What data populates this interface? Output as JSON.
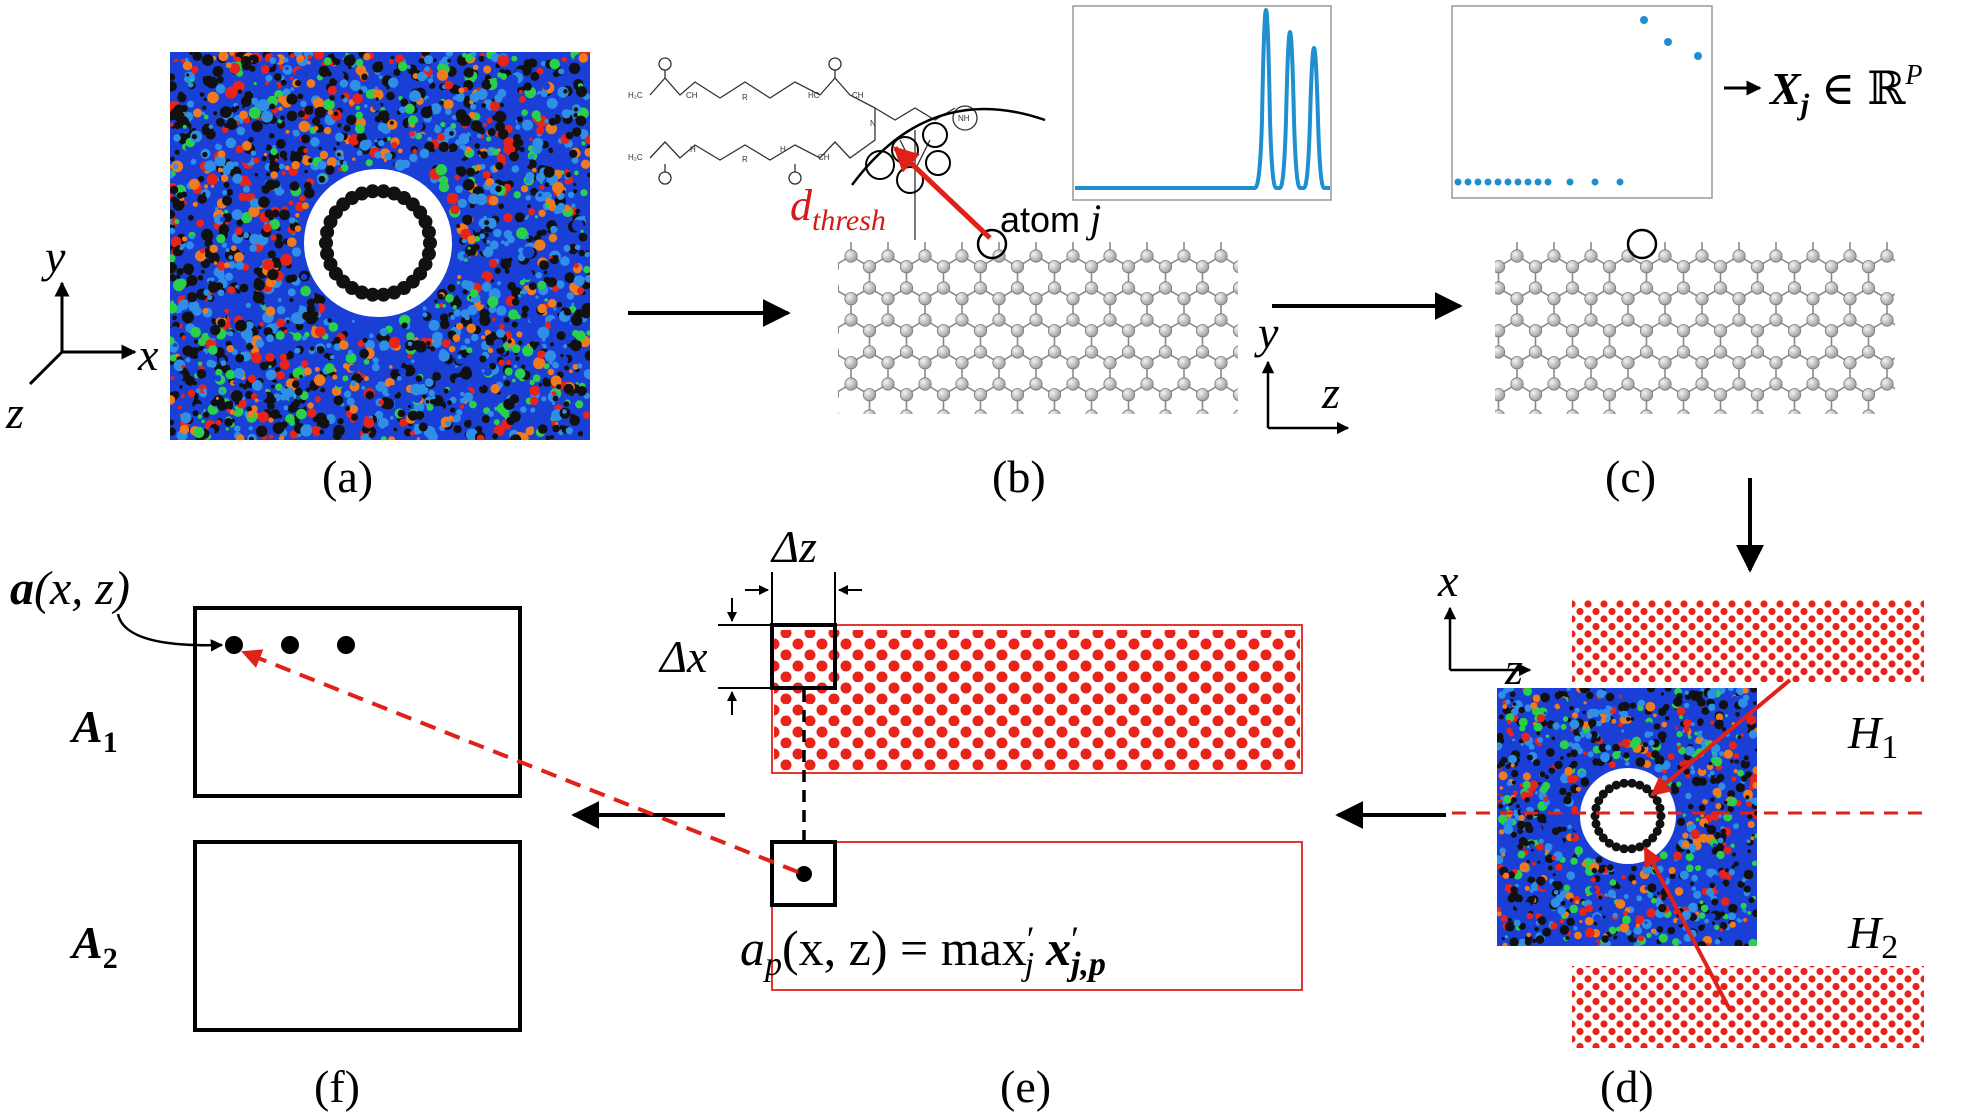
{
  "panels": {
    "a": "(a)",
    "b": "(b)",
    "c": "(c)",
    "d": "(d)",
    "e": "(e)",
    "f": "(f)"
  },
  "axes_a": {
    "y": "y",
    "x": "x",
    "z": "z"
  },
  "axes_b": {
    "y": "y",
    "z": "z"
  },
  "axes_d": {
    "x": "x",
    "z": "z"
  },
  "molecule_labels": [
    "H₂C",
    "CH",
    "R",
    "HC",
    "CH",
    "H₂C",
    "H",
    "R",
    "H",
    "CH",
    "N",
    "NH"
  ],
  "d_thresh_main": "d",
  "d_thresh_sub": "thresh",
  "atom_label": "atom",
  "atom_index": "j",
  "feature_vector": {
    "X": "X",
    "sub": "j",
    "in": "∈",
    "space": "ℝ",
    "sup": "P"
  },
  "grid_labels": {
    "dz": "Δz",
    "dx": "Δx"
  },
  "half_labels": {
    "h1": "H",
    "h1_sub": "1",
    "h2": "H",
    "h2_sub": "2"
  },
  "formula": {
    "a": "a",
    "p": "p",
    "args": "(x, z) = max",
    "prime": "′",
    "j": "j",
    "x": "x",
    "sub": "j,p"
  },
  "output": {
    "a": "a",
    "args": "(x, z)",
    "A1": "A",
    "A1_sub": "1",
    "A2": "A",
    "A2_sub": "2"
  },
  "colors": {
    "epoxy_blue": "#1a3fd6",
    "light_blue": "#2f8fe6",
    "red": "#e8241a",
    "orange": "#f07a1e",
    "green": "#2bd04a",
    "black": "#111111",
    "signal": "#1f8fcf",
    "graphene": "#bfbfbf"
  }
}
